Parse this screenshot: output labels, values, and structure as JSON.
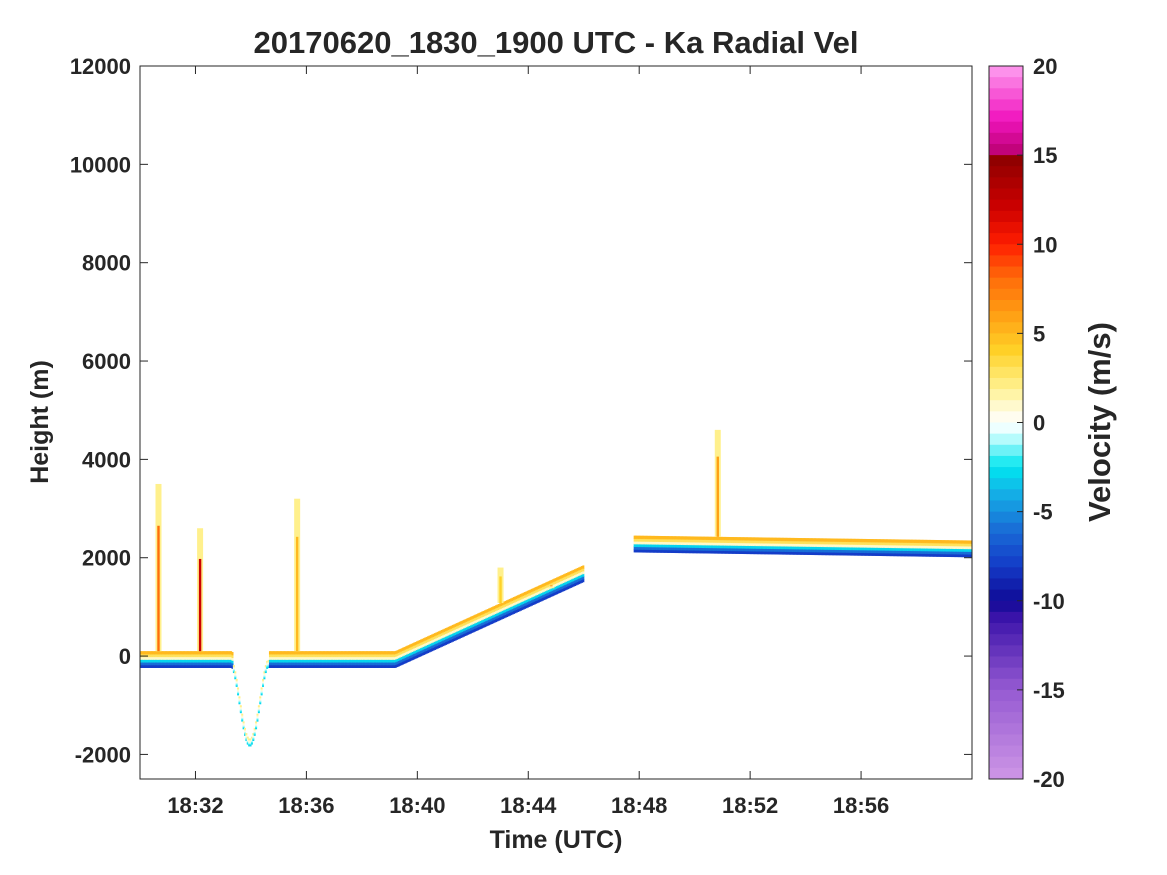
{
  "chart_data": {
    "type": "heatmap",
    "title": "20170620_1830_1900 UTC - Ka Radial Vel",
    "xlabel": "Time (UTC)",
    "ylabel": "Height (m)",
    "xlim": [
      "18:30",
      "19:00"
    ],
    "ylim": [
      -2500,
      12000
    ],
    "x_ticks": [
      "18:32",
      "18:36",
      "18:40",
      "18:44",
      "18:48",
      "18:52",
      "18:56"
    ],
    "y_ticks": [
      12000,
      10000,
      8000,
      6000,
      4000,
      2000,
      0,
      -2000
    ],
    "y_tick_labels": [
      "12000",
      "10000",
      "8000",
      "6000",
      "4000",
      "2000",
      "0",
      "-2000"
    ],
    "grid": false,
    "colorbar": {
      "label": "Velocity (m/s)",
      "range": [
        -20,
        20
      ],
      "ticks": [
        20,
        15,
        10,
        5,
        0,
        -5,
        -10,
        -15,
        -20
      ],
      "tick_labels": [
        "20",
        "15",
        "10",
        "5",
        "0",
        "-5",
        "-10",
        "-15",
        "-20"
      ]
    },
    "surface_band": {
      "description_units": "time in minutes after 18:30, height in m",
      "segments": [
        {
          "t": [
            0.0,
            3.3
          ],
          "h": [
            -100,
            -100
          ]
        },
        {
          "t": [
            3.3,
            4.6
          ],
          "h": [
            -100,
            -1700
          ],
          "shape": "dip"
        },
        {
          "t": [
            4.6,
            9.2
          ],
          "h": [
            -100,
            -100
          ]
        },
        {
          "t": [
            9.2,
            16.0
          ],
          "h": [
            -100,
            1650
          ]
        },
        {
          "t": [
            17.8,
            30.0
          ],
          "h": [
            2250,
            2150
          ]
        }
      ],
      "band_layers_velocity": [
        -8,
        -6,
        -3,
        1,
        3,
        5
      ]
    },
    "spikes": [
      {
        "time": "18:30:40",
        "top_height": 3500,
        "velocity": 8
      },
      {
        "time": "18:32:10",
        "top_height": 2600,
        "velocity": 12
      },
      {
        "time": "18:35:40",
        "top_height": 3200,
        "velocity": 5
      },
      {
        "time": "18:43:00",
        "top_height": 1800,
        "velocity": 4
      },
      {
        "time": "18:44:50",
        "top_height": 1400,
        "velocity": 7
      },
      {
        "time": "18:50:50",
        "top_height": 4600,
        "velocity": 6
      }
    ]
  }
}
